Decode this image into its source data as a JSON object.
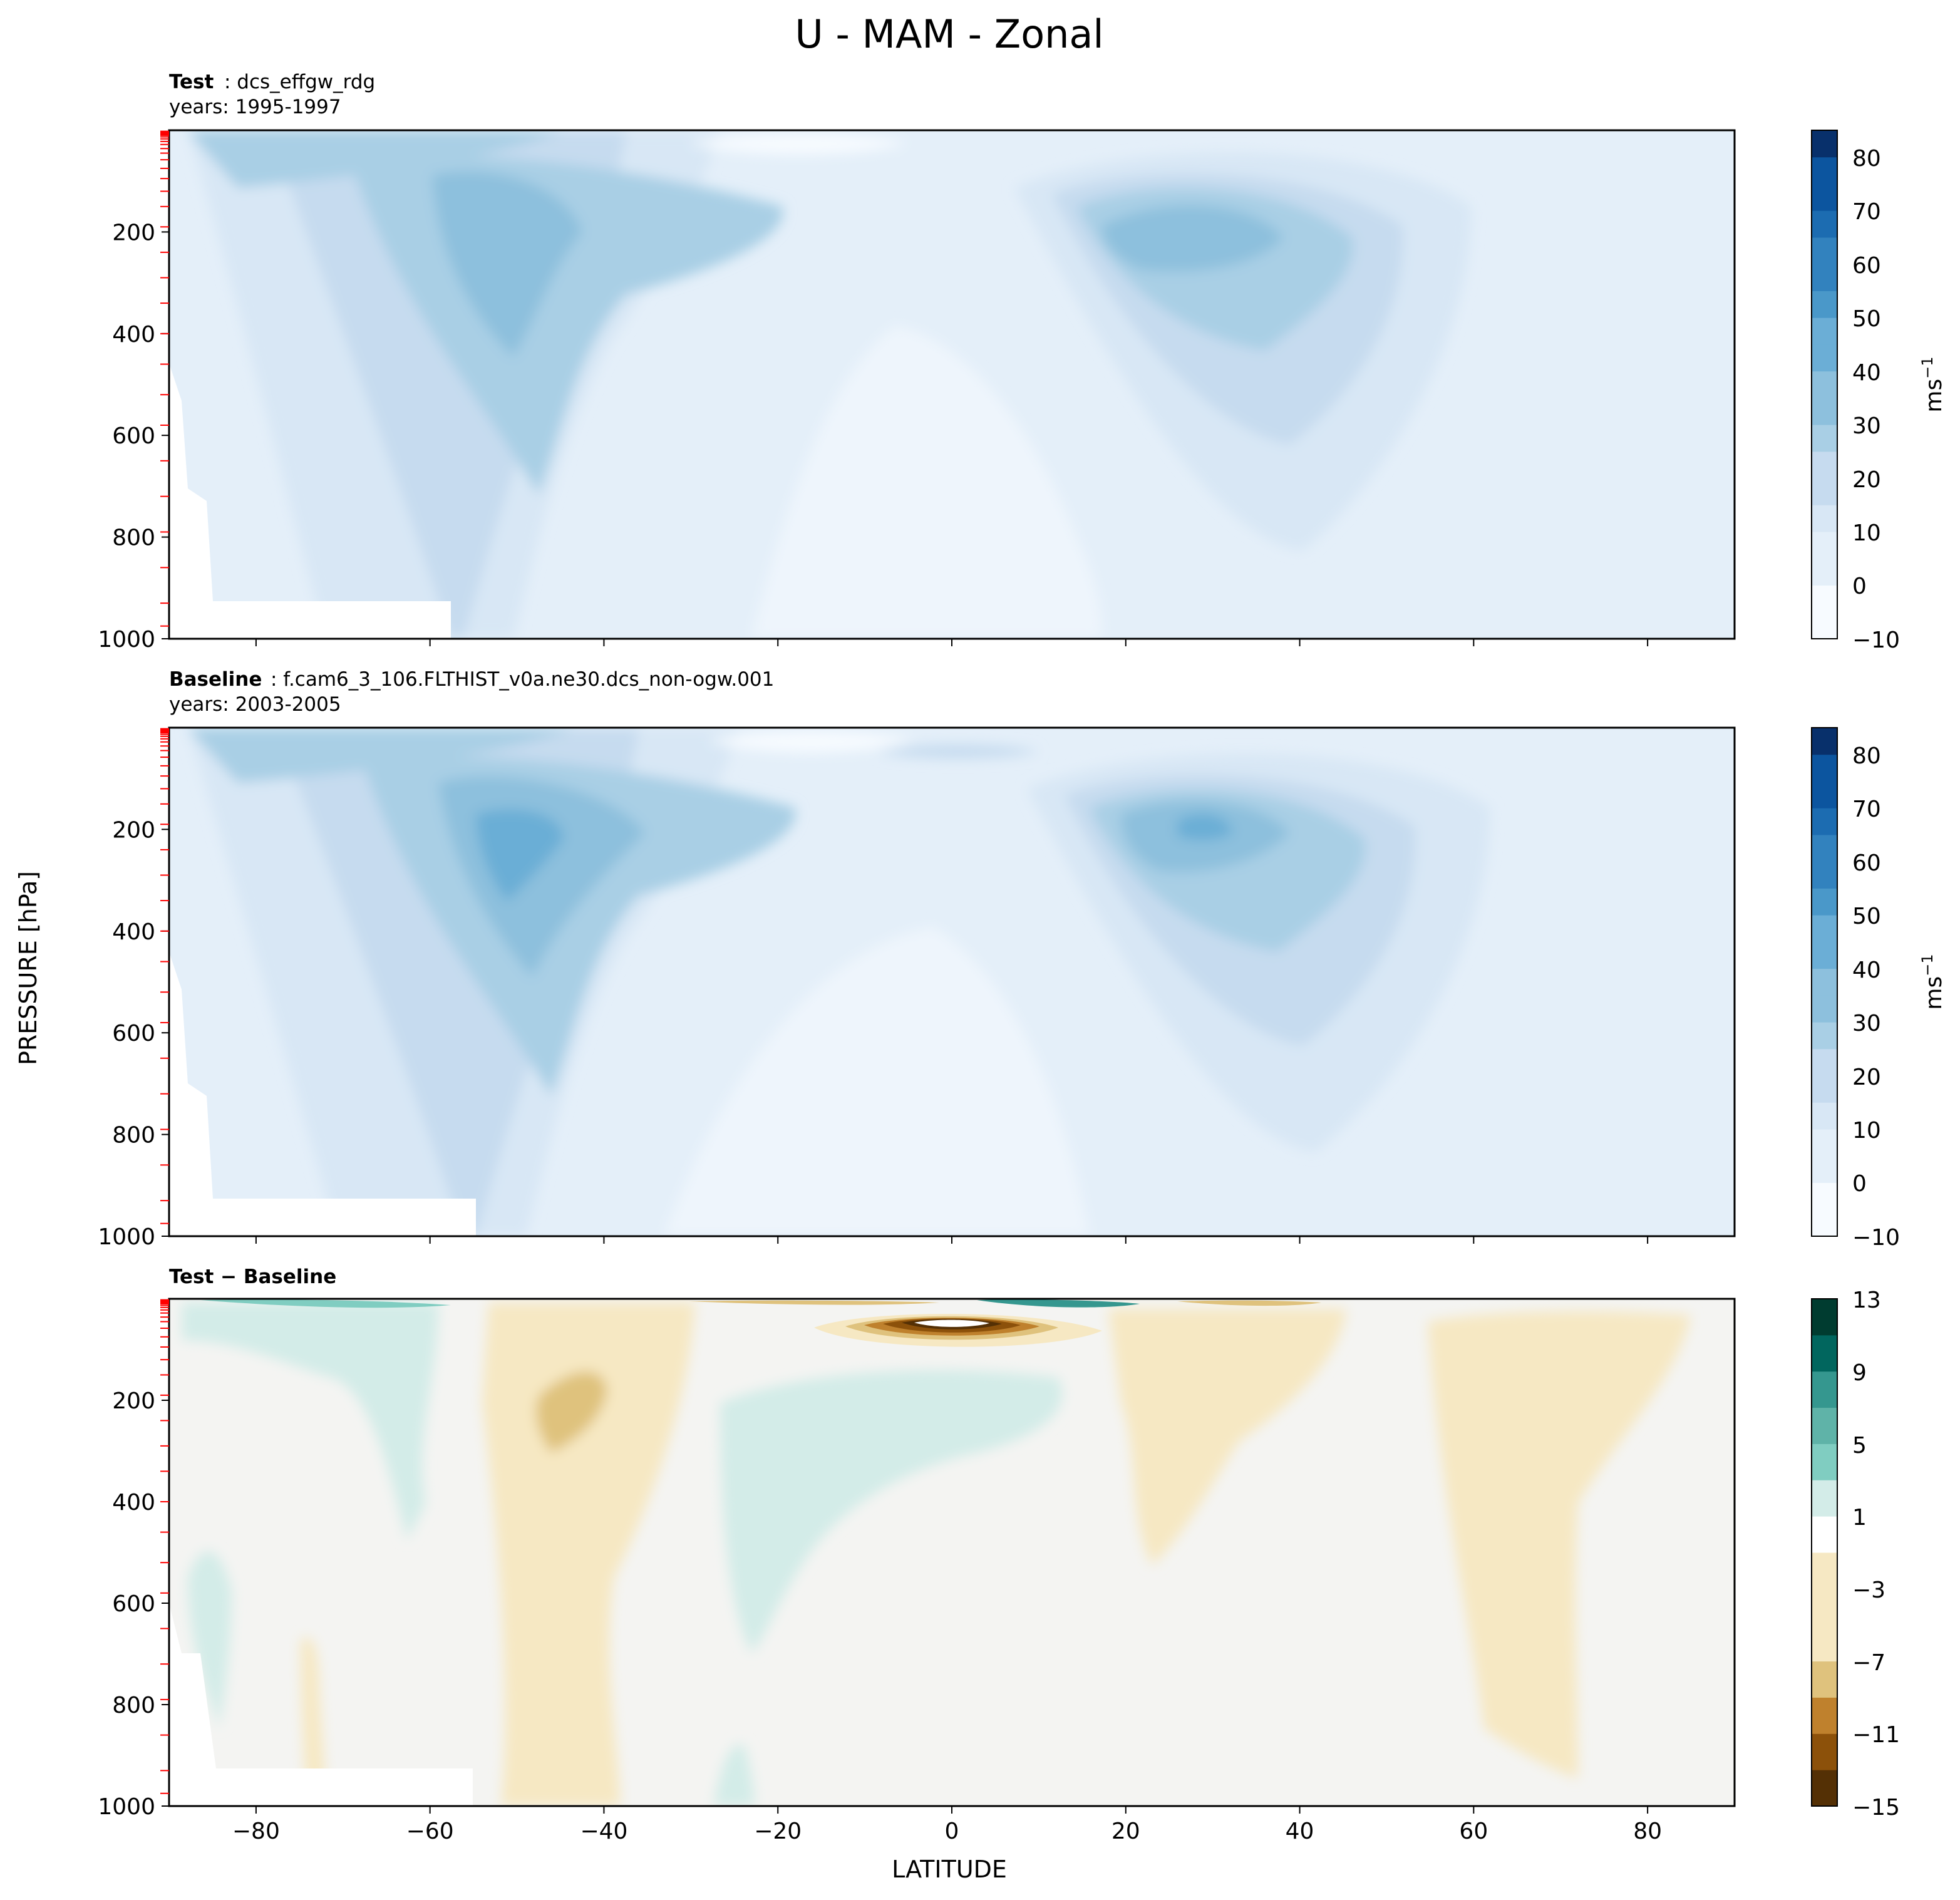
{
  "figure_title": "U - MAM - Zonal",
  "x_axis_label": "LATITUDE",
  "y_axis_label": "PRESSURE [hPa]",
  "colorbar_units": "ms",
  "colorbar_units_exponent": "−1",
  "colors": {
    "blues": [
      "#f7fbff",
      "#e4eff9",
      "#d8e7f5",
      "#c6dbef",
      "#a9cfe5",
      "#8dc0dd",
      "#6baed6",
      "#4a98c9",
      "#3282be",
      "#1c6cb1",
      "#0c559f",
      "#08306b"
    ],
    "diverging": [
      "#543005",
      "#8c510a",
      "#bf812d",
      "#dfc27d",
      "#f6e8c3",
      "#f4f4f2",
      "#d3ece8",
      "#80cdc1",
      "#35978f",
      "#01665e",
      "#003c30"
    ],
    "model_level_tick": "#ff0000"
  },
  "panels": [
    {
      "id": "test",
      "title_bold": "Test",
      "title_text": ": dcs_effgw_rdg",
      "years": "years: 1995-1997",
      "colorbar_ticks": [
        "80",
        "70",
        "60",
        "50",
        "40",
        "30",
        "20",
        "10",
        "0",
        "−10"
      ]
    },
    {
      "id": "baseline",
      "title_bold": "Baseline",
      "title_text": ": f.cam6_3_106.FLTHIST_v0a.ne30.dcs_non-ogw.001",
      "years": "years: 2003-2005",
      "colorbar_ticks": [
        "80",
        "70",
        "60",
        "50",
        "40",
        "30",
        "20",
        "10",
        "0",
        "−10"
      ]
    },
    {
      "id": "diff",
      "title_bold": "Test − Baseline",
      "title_text": "",
      "years": "",
      "colorbar_ticks": [
        "13",
        "9",
        "5",
        "1",
        "−3",
        "−7",
        "−11",
        "−15"
      ]
    }
  ],
  "chart_data": [
    {
      "type": "contourf",
      "panel": "test",
      "title": "Test : dcs_effgw_rdg",
      "subtitle": "years: 1995-1997",
      "xlabel": "LATITUDE",
      "ylabel": "PRESSURE [hPa]",
      "xlim": [
        -90,
        90
      ],
      "ylim": [
        1000,
        0
      ],
      "x_ticks": [
        -80,
        -60,
        -40,
        -20,
        0,
        20,
        40,
        60,
        80
      ],
      "y_ticks": [
        200,
        400,
        600,
        800,
        1000
      ],
      "colorbar": {
        "min": -10,
        "max": 85,
        "levels": [
          -10,
          -5,
          0,
          5,
          10,
          15,
          20,
          25,
          30,
          35,
          40,
          45,
          50,
          55,
          60,
          65,
          70,
          75,
          80,
          85
        ],
        "ticks": [
          -10,
          0,
          10,
          20,
          30,
          40,
          50,
          60,
          70,
          80
        ],
        "cmap": "Blues",
        "units": "ms^-1"
      },
      "features": [
        {
          "kind": "jet_max",
          "lat": -52,
          "pressure": 200,
          "value": 35
        },
        {
          "kind": "jet_max",
          "lat": 30,
          "pressure": 200,
          "value": 35
        },
        {
          "kind": "easterly_min",
          "lat": -10,
          "pressure": 20,
          "value": -5
        }
      ]
    },
    {
      "type": "contourf",
      "panel": "baseline",
      "title": "Baseline : f.cam6_3_106.FLTHIST_v0a.ne30.dcs_non-ogw.001",
      "subtitle": "years: 2003-2005",
      "xlabel": "LATITUDE",
      "ylabel": "PRESSURE [hPa]",
      "xlim": [
        -90,
        90
      ],
      "ylim": [
        1000,
        0
      ],
      "x_ticks": [
        -80,
        -60,
        -40,
        -20,
        0,
        20,
        40,
        60,
        80
      ],
      "y_ticks": [
        200,
        400,
        600,
        800,
        1000
      ],
      "colorbar": {
        "min": -10,
        "max": 85,
        "levels": [
          -10,
          -5,
          0,
          5,
          10,
          15,
          20,
          25,
          30,
          35,
          40,
          45,
          50,
          55,
          60,
          65,
          70,
          75,
          80,
          85
        ],
        "ticks": [
          -10,
          0,
          10,
          20,
          30,
          40,
          50,
          60,
          70,
          80
        ],
        "cmap": "Blues",
        "units": "ms^-1"
      },
      "features": [
        {
          "kind": "jet_max",
          "lat": -50,
          "pressure": 230,
          "value": 35
        },
        {
          "kind": "jet_max",
          "lat": 28,
          "pressure": 200,
          "value": 40
        },
        {
          "kind": "westerly_patch",
          "lat": 0,
          "pressure": 50,
          "value": 20
        }
      ]
    },
    {
      "type": "contourf",
      "panel": "diff",
      "title": "Test − Baseline",
      "xlabel": "LATITUDE",
      "ylabel": "PRESSURE [hPa]",
      "xlim": [
        -90,
        90
      ],
      "ylim": [
        1000,
        0
      ],
      "x_ticks": [
        -80,
        -60,
        -40,
        -20,
        0,
        20,
        40,
        60,
        80
      ],
      "y_ticks": [
        200,
        400,
        600,
        800,
        1000
      ],
      "colorbar": {
        "min": -15,
        "max": 13,
        "levels": [
          -15,
          -13,
          -11,
          -9,
          -7,
          -5,
          -3,
          -1,
          1,
          3,
          5,
          7,
          9,
          11,
          13
        ],
        "ticks": [
          -15,
          -11,
          -7,
          -3,
          1,
          5,
          9,
          13
        ],
        "cmap": "BrBG",
        "units": "ms^-1"
      },
      "features": [
        {
          "kind": "negative_min",
          "lat": 0,
          "pressure": 50,
          "value": -15
        },
        {
          "kind": "positive_max",
          "lat": -60,
          "pressure": 10,
          "value": 9
        },
        {
          "kind": "positive_max",
          "lat": 10,
          "pressure": 10,
          "value": 13
        }
      ]
    }
  ]
}
